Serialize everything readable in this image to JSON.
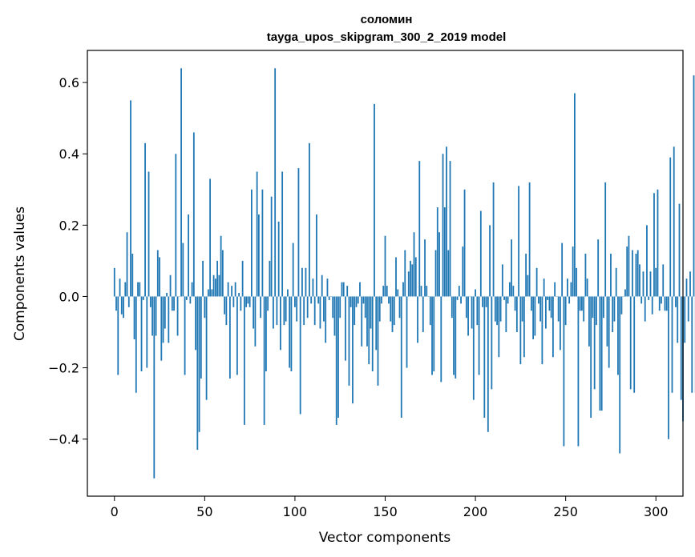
{
  "chart_data": {
    "type": "bar",
    "title": "соломин",
    "subtitle": "tayga_upos_skipgram_300_2_2019 model",
    "xlabel": "Vector components",
    "ylabel": "Components values",
    "xlim": [
      -15,
      315
    ],
    "ylim": [
      -0.56,
      0.69
    ],
    "xticks": [
      0,
      50,
      100,
      150,
      200,
      250,
      300
    ],
    "xtick_labels": [
      "0",
      "50",
      "100",
      "150",
      "200",
      "250",
      "300"
    ],
    "yticks": [
      -0.4,
      -0.2,
      0.0,
      0.2,
      0.4,
      0.6
    ],
    "ytick_labels": [
      "−0.4",
      "−0.2",
      "0.0",
      "0.2",
      "0.4",
      "0.6"
    ],
    "bar_color": "#1f77b4",
    "grid": false,
    "values": [
      0.08,
      -0.04,
      -0.22,
      0.05,
      -0.05,
      -0.06,
      0.04,
      0.18,
      -0.03,
      0.55,
      0.12,
      -0.12,
      -0.27,
      0.04,
      0.04,
      -0.21,
      -0.01,
      0.43,
      -0.2,
      0.35,
      -0.03,
      -0.11,
      -0.51,
      -0.11,
      0.13,
      0.11,
      -0.18,
      -0.13,
      -0.09,
      0.01,
      -0.13,
      0.06,
      -0.04,
      -0.04,
      0.4,
      -0.11,
      0.0,
      0.64,
      0.15,
      -0.22,
      -0.01,
      0.23,
      -0.02,
      0.04,
      0.46,
      -0.15,
      -0.43,
      -0.38,
      -0.23,
      0.1,
      -0.06,
      -0.29,
      0.02,
      0.33,
      0.02,
      0.06,
      0.05,
      0.1,
      0.06,
      0.17,
      0.13,
      -0.05,
      -0.08,
      0.04,
      -0.23,
      0.03,
      -0.03,
      0.04,
      -0.22,
      0.01,
      -0.04,
      0.1,
      -0.36,
      -0.03,
      -0.02,
      -0.03,
      0.3,
      -0.09,
      -0.14,
      0.35,
      0.23,
      -0.06,
      0.3,
      -0.36,
      -0.21,
      -0.04,
      0.1,
      0.28,
      -0.09,
      0.64,
      -0.08,
      0.21,
      -0.15,
      0.35,
      -0.08,
      -0.07,
      0.02,
      -0.2,
      -0.21,
      0.15,
      -0.03,
      -0.07,
      0.36,
      -0.33,
      0.08,
      -0.08,
      0.08,
      -0.06,
      0.43,
      -0.02,
      0.05,
      -0.08,
      0.23,
      -0.02,
      -0.09,
      0.06,
      -0.07,
      -0.13,
      0.05,
      -0.01,
      0.0,
      -0.06,
      -0.11,
      -0.36,
      -0.34,
      -0.06,
      0.04,
      0.04,
      -0.18,
      0.03,
      -0.25,
      -0.03,
      -0.3,
      -0.08,
      -0.03,
      -0.02,
      0.04,
      -0.14,
      -0.02,
      -0.06,
      -0.14,
      -0.19,
      -0.09,
      -0.21,
      0.54,
      -0.15,
      -0.25,
      -0.07,
      -0.02,
      0.03,
      0.17,
      0.03,
      -0.02,
      -0.07,
      -0.1,
      -0.08,
      0.11,
      0.02,
      -0.06,
      -0.34,
      0.04,
      0.13,
      -0.2,
      0.07,
      0.1,
      0.09,
      0.18,
      0.11,
      -0.13,
      0.38,
      0.03,
      -0.1,
      0.16,
      0.03,
      0.0,
      -0.08,
      -0.22,
      -0.21,
      0.13,
      0.25,
      0.18,
      -0.24,
      0.4,
      0.25,
      0.42,
      0.13,
      0.38,
      -0.06,
      -0.22,
      -0.23,
      -0.01,
      0.03,
      -0.02,
      0.14,
      0.3,
      -0.06,
      -0.11,
      0.0,
      -0.09,
      -0.29,
      0.02,
      -0.08,
      -0.22,
      0.24,
      -0.03,
      -0.34,
      -0.03,
      -0.38,
      0.2,
      -0.26,
      0.32,
      -0.07,
      -0.08,
      -0.17,
      -0.07,
      0.09,
      -0.01,
      -0.1,
      -0.02,
      0.04,
      0.16,
      0.03,
      -0.04,
      -0.1,
      0.31,
      -0.19,
      -0.07,
      -0.17,
      0.12,
      0.06,
      0.32,
      -0.04,
      -0.12,
      -0.11,
      0.08,
      -0.02,
      -0.07,
      -0.19,
      0.05,
      -0.09,
      -0.01,
      -0.04,
      -0.06,
      -0.17,
      0.04,
      0.0,
      -0.07,
      -0.15,
      0.15,
      -0.42,
      -0.08,
      0.05,
      -0.02,
      0.04,
      0.14,
      0.57,
      0.08,
      -0.42,
      -0.04,
      -0.04,
      -0.07,
      0.12,
      0.05,
      -0.14,
      -0.34,
      -0.06,
      -0.26,
      -0.08,
      0.16,
      -0.32,
      -0.32,
      -0.06,
      0.32,
      -0.14,
      -0.2,
      0.12,
      -0.1,
      -0.07,
      0.08,
      -0.22,
      -0.44,
      -0.05,
      0.0,
      0.02,
      0.14,
      0.17,
      -0.26,
      0.13,
      -0.27,
      0.12,
      0.13,
      0.09,
      -0.02,
      0.07,
      -0.07,
      0.2,
      -0.01,
      0.07,
      -0.05,
      0.29,
      0.08,
      0.3,
      -0.04,
      -0.02,
      0.09,
      -0.04,
      -0.04,
      -0.4,
      0.39,
      -0.27,
      0.42,
      -0.03,
      -0.13,
      0.26,
      -0.29,
      -0.35,
      -0.13,
      0.05,
      -0.07,
      0.07,
      -0.27,
      0.62,
      -0.27
    ]
  }
}
